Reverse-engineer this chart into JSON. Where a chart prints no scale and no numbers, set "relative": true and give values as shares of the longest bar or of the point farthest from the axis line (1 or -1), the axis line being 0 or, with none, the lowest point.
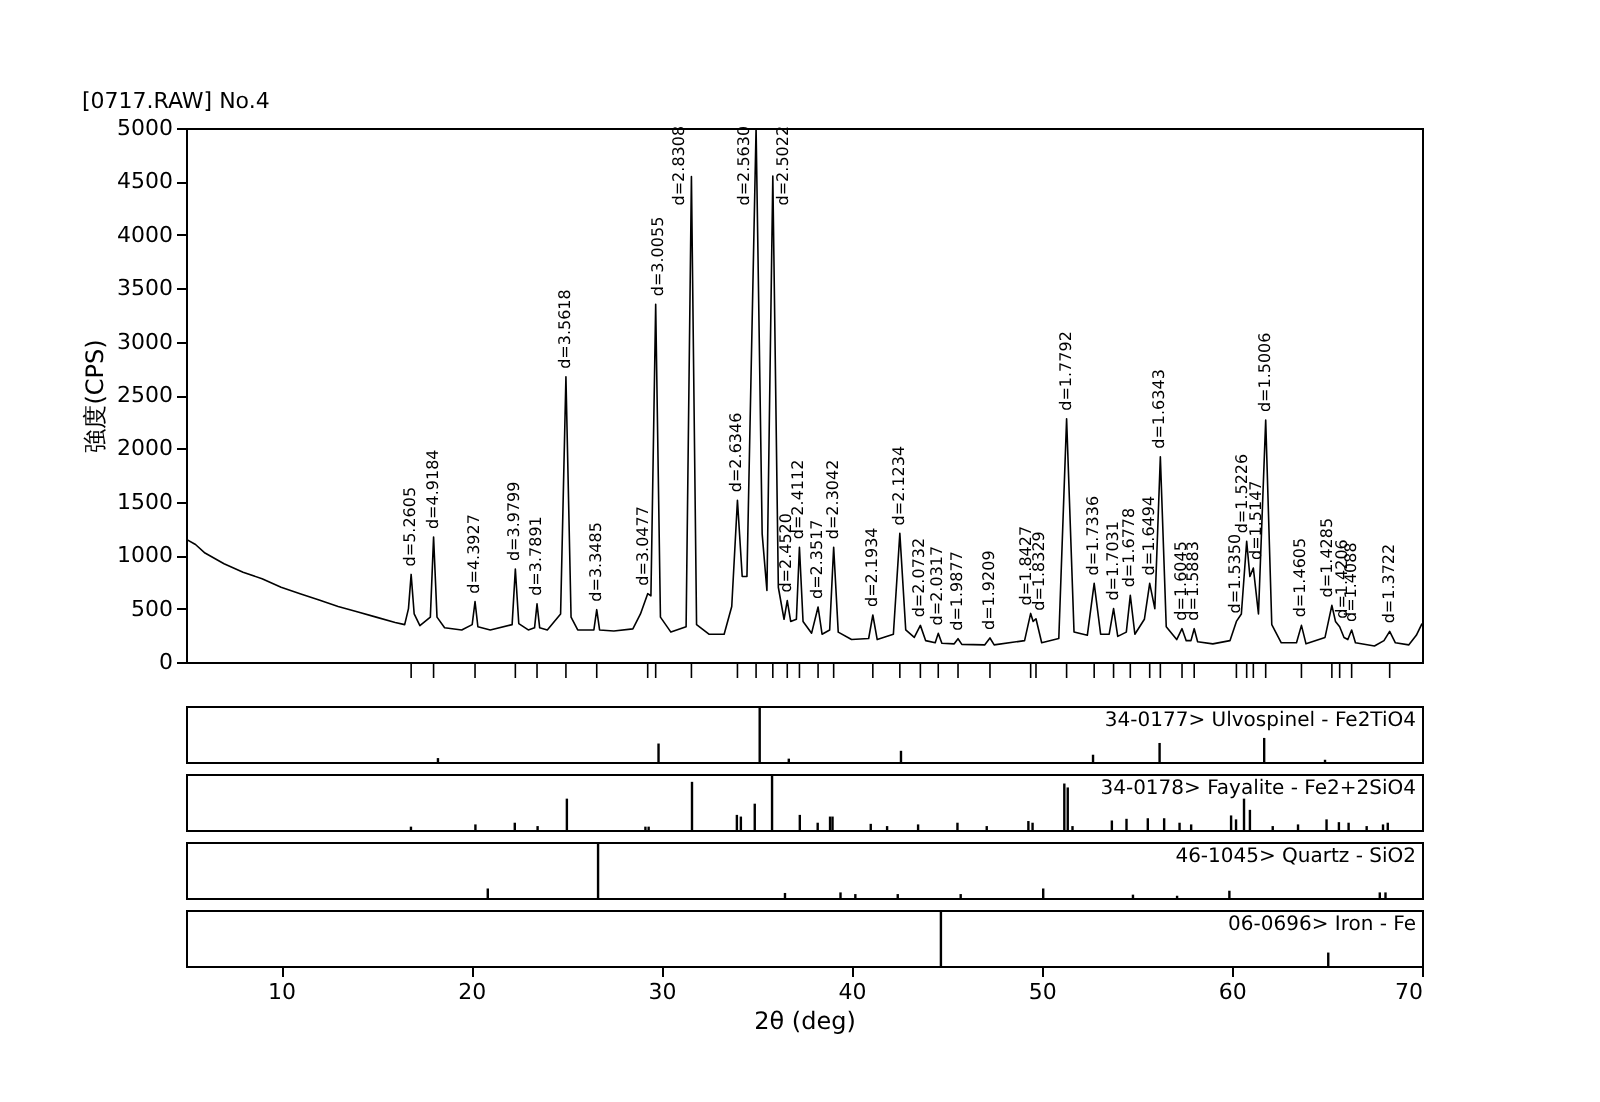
{
  "chart_data": [
    {
      "type": "line",
      "title": "[0717.RAW] No.4",
      "ylabel": "強度(CPS)",
      "xlim": [
        5,
        70
      ],
      "ylim": [
        0,
        5000
      ],
      "yticks": [
        0,
        500,
        1000,
        1500,
        2000,
        2500,
        3000,
        3500,
        4000,
        4500,
        5000
      ],
      "tick_labels": "y",
      "grid": false,
      "line_style": "solid",
      "x": [
        5.0,
        5.5,
        6,
        7,
        8,
        9,
        10,
        11,
        12,
        13,
        14,
        15,
        16,
        16.5,
        16.7,
        16.84,
        17.0,
        17.3,
        17.85,
        18.02,
        18.2,
        18.6,
        19.5,
        20.05,
        20.2,
        20.35,
        21,
        22.15,
        22.32,
        22.5,
        23.0,
        23.33,
        23.46,
        23.6,
        24.0,
        24.7,
        24.98,
        25.25,
        25.6,
        26.45,
        26.6,
        26.75,
        27.5,
        28.5,
        28.9,
        29.28,
        29.45,
        29.7,
        29.95,
        30.5,
        31.3,
        31.58,
        31.85,
        32.5,
        33.3,
        33.7,
        34.0,
        34.25,
        34.5,
        34.98,
        35.3,
        35.55,
        35.86,
        36.15,
        36.45,
        36.62,
        36.8,
        37.1,
        37.26,
        37.45,
        37.9,
        38.24,
        38.45,
        38.85,
        39.06,
        39.3,
        40.0,
        40.9,
        41.12,
        41.35,
        42.2,
        42.54,
        42.85,
        43.3,
        43.62,
        43.9,
        44.4,
        44.56,
        44.75,
        45.4,
        45.6,
        45.8,
        47.0,
        47.28,
        47.5,
        49.1,
        49.42,
        49.55,
        49.7,
        50.0,
        50.9,
        51.31,
        51.7,
        52.4,
        52.76,
        53.1,
        53.55,
        53.78,
        54.0,
        54.45,
        54.66,
        54.9,
        55.4,
        55.68,
        55.95,
        56.24,
        56.55,
        57.1,
        57.38,
        57.6,
        57.85,
        58.02,
        58.2,
        59.0,
        59.9,
        60.24,
        60.5,
        60.78,
        60.95,
        61.13,
        61.4,
        61.78,
        62.1,
        62.6,
        63.4,
        63.66,
        63.9,
        64.9,
        65.26,
        65.45,
        65.67,
        65.9,
        66.1,
        66.3,
        66.5,
        67.5,
        68.0,
        68.3,
        68.6,
        69.3,
        69.7,
        70.0
      ],
      "series": [
        {
          "color": "#000000",
          "values": [
            1150,
            1100,
            1020,
            920,
            840,
            780,
            700,
            640,
            580,
            520,
            470,
            420,
            370,
            350,
            500,
            820,
            450,
            340,
            420,
            1170,
            420,
            320,
            300,
            350,
            565,
            330,
            300,
            350,
            870,
            360,
            300,
            320,
            545,
            320,
            300,
            450,
            2670,
            420,
            300,
            300,
            490,
            300,
            290,
            310,
            450,
            640,
            620,
            3350,
            420,
            280,
            330,
            4545,
            350,
            260,
            260,
            520,
            1515,
            800,
            800,
            5000,
            1200,
            670,
            4550,
            700,
            400,
            575,
            380,
            400,
            1075,
            380,
            270,
            515,
            260,
            300,
            1075,
            280,
            210,
            220,
            440,
            210,
            260,
            1204,
            300,
            230,
            343,
            200,
            180,
            268,
            175,
            170,
            218,
            165,
            160,
            225,
            160,
            200,
            455,
            380,
            405,
            180,
            220,
            2278,
            280,
            250,
            736,
            260,
            260,
            500,
            240,
            280,
            624,
            260,
            400,
            736,
            500,
            1922,
            330,
            210,
            312,
            200,
            200,
            312,
            190,
            170,
            200,
            380,
            450,
            1130,
            800,
            880,
            450,
            2265,
            350,
            180,
            180,
            343,
            170,
            230,
            530,
            380,
            330,
            230,
            210,
            300,
            180,
            150,
            200,
            287,
            180,
            160,
            250,
            360
          ]
        }
      ],
      "annotations": [
        {
          "text": "d=5.2605",
          "x": 16.84,
          "y": 820
        },
        {
          "text": "d=4.9184",
          "x": 18.02,
          "y": 1170
        },
        {
          "text": "d=4.3927",
          "x": 20.2,
          "y": 565
        },
        {
          "text": "d=3.9799",
          "x": 22.32,
          "y": 870
        },
        {
          "text": "d=3.7891",
          "x": 23.46,
          "y": 545
        },
        {
          "text": "d=3.5618",
          "x": 24.98,
          "y": 2670
        },
        {
          "text": "d=3.3485",
          "x": 26.6,
          "y": 490
        },
        {
          "text": "d=3.0477",
          "x": 29.28,
          "y": 640
        },
        {
          "text": "d=3.0055",
          "x": 29.7,
          "y": 3350
        },
        {
          "text": "d=2.8308",
          "x": 31.58,
          "y": 4545
        },
        {
          "text": "d=2.6346",
          "x": 34.0,
          "y": 1515
        },
        {
          "text": "d=2.5630",
          "x": 34.98,
          "y": 5000
        },
        {
          "text": "d=2.5022",
          "x": 35.86,
          "y": 4550
        },
        {
          "text": "d=2.4520",
          "x": 36.62,
          "y": 575
        },
        {
          "text": "d=2.4112",
          "x": 37.26,
          "y": 1075
        },
        {
          "text": "d=2.3517",
          "x": 38.24,
          "y": 515
        },
        {
          "text": "d=2.3042",
          "x": 39.06,
          "y": 1075
        },
        {
          "text": "d=2.1934",
          "x": 41.12,
          "y": 440
        },
        {
          "text": "d=2.1234",
          "x": 42.54,
          "y": 1204
        },
        {
          "text": "d=2.0732",
          "x": 43.62,
          "y": 343
        },
        {
          "text": "d=2.0317",
          "x": 44.56,
          "y": 268
        },
        {
          "text": "d=1.9877",
          "x": 45.6,
          "y": 218
        },
        {
          "text": "d=1.9209",
          "x": 47.28,
          "y": 225
        },
        {
          "text": "d=1.8427",
          "x": 49.42,
          "y": 455
        },
        {
          "text": "d=1.8329",
          "x": 49.7,
          "y": 405
        },
        {
          "text": "d=1.7792",
          "x": 51.31,
          "y": 2278
        },
        {
          "text": "d=1.7336",
          "x": 52.76,
          "y": 736
        },
        {
          "text": "d=1.7031",
          "x": 53.78,
          "y": 500
        },
        {
          "text": "d=1.6778",
          "x": 54.66,
          "y": 624
        },
        {
          "text": "d=1.6494",
          "x": 55.68,
          "y": 736
        },
        {
          "text": "d=1.6343",
          "x": 56.24,
          "y": 1922
        },
        {
          "text": "d=1.6045",
          "x": 57.38,
          "y": 312
        },
        {
          "text": "d=1.5883",
          "x": 58.02,
          "y": 312
        },
        {
          "text": "d=1.5350",
          "x": 60.24,
          "y": 380
        },
        {
          "text": "d=1.5226",
          "x": 60.78,
          "y": 1130
        },
        {
          "text": "d=1.5147",
          "x": 61.13,
          "y": 880
        },
        {
          "text": "d=1.5006",
          "x": 61.78,
          "y": 2265
        },
        {
          "text": "d=1.4605",
          "x": 63.66,
          "y": 343
        },
        {
          "text": "d=1.4285",
          "x": 65.26,
          "y": 530
        },
        {
          "text": "d=1.4206",
          "x": 65.67,
          "y": 330
        },
        {
          "text": "d=1.4088",
          "x": 66.3,
          "y": 300
        },
        {
          "text": "d=1.3722",
          "x": 68.3,
          "y": 287
        }
      ]
    },
    {
      "type": "bar",
      "title": "34-0177> Ulvospinel - Fe2TiO4",
      "relative": true,
      "color": "#000000",
      "xlim": [
        5,
        70
      ],
      "tick_labels": false,
      "x": [
        18.25,
        29.85,
        35.17,
        36.7,
        42.6,
        52.7,
        56.2,
        61.7,
        64.9
      ],
      "values": [
        0.07,
        0.33,
        1,
        0.06,
        0.2,
        0.13,
        0.34,
        0.43,
        0.04
      ]
    },
    {
      "type": "bar",
      "title": "34-0178> Fayalite - Fe2+2SiO4",
      "relative": true,
      "color": "#000000",
      "xlim": [
        5,
        70
      ],
      "tick_labels": false,
      "x": [
        16.83,
        20.22,
        22.29,
        23.49,
        25.03,
        29.16,
        29.33,
        31.61,
        33.97,
        34.18,
        34.91,
        35.82,
        37.28,
        38.22,
        38.87,
        39.0,
        41.01,
        41.87,
        43.5,
        45.57,
        47.11,
        49.3,
        49.52,
        51.19,
        51.37,
        51.62,
        53.69,
        54.46,
        55.58,
        56.44,
        57.25,
        57.86,
        59.96,
        60.22,
        60.64,
        60.95,
        62.15,
        63.48,
        64.98,
        65.63,
        66.14,
        67.09,
        67.95,
        68.2
      ],
      "values": [
        0.06,
        0.1,
        0.13,
        0.07,
        0.56,
        0.06,
        0.06,
        0.86,
        0.27,
        0.24,
        0.47,
        1,
        0.27,
        0.13,
        0.24,
        0.24,
        0.11,
        0.07,
        0.1,
        0.13,
        0.07,
        0.16,
        0.13,
        0.83,
        0.76,
        0.07,
        0.17,
        0.2,
        0.21,
        0.21,
        0.13,
        0.1,
        0.26,
        0.19,
        0.56,
        0.36,
        0.07,
        0.1,
        0.19,
        0.14,
        0.13,
        0.07,
        0.1,
        0.13
      ]
    },
    {
      "type": "bar",
      "title": "46-1045> Quartz - SiO2",
      "relative": true,
      "color": "#000000",
      "xlim": [
        5,
        70
      ],
      "tick_labels": false,
      "x": [
        20.87,
        26.67,
        36.5,
        39.42,
        40.2,
        42.43,
        45.74,
        50.08,
        54.8,
        57.12,
        59.87,
        67.78,
        68.08
      ],
      "values": [
        0.17,
        1,
        0.09,
        0.1,
        0.07,
        0.07,
        0.07,
        0.17,
        0.06,
        0.04,
        0.13,
        0.1,
        0.1
      ]
    },
    {
      "type": "bar",
      "title": "06-0696> Iron - Fe",
      "xlabel": "2θ (deg)",
      "relative": true,
      "color": "#000000",
      "xlim": [
        5,
        70
      ],
      "xticks": [
        10,
        20,
        30,
        40,
        50,
        60,
        70
      ],
      "tick_labels": "x",
      "x": [
        44.7,
        65.07
      ],
      "values": [
        1,
        0.24
      ]
    }
  ]
}
